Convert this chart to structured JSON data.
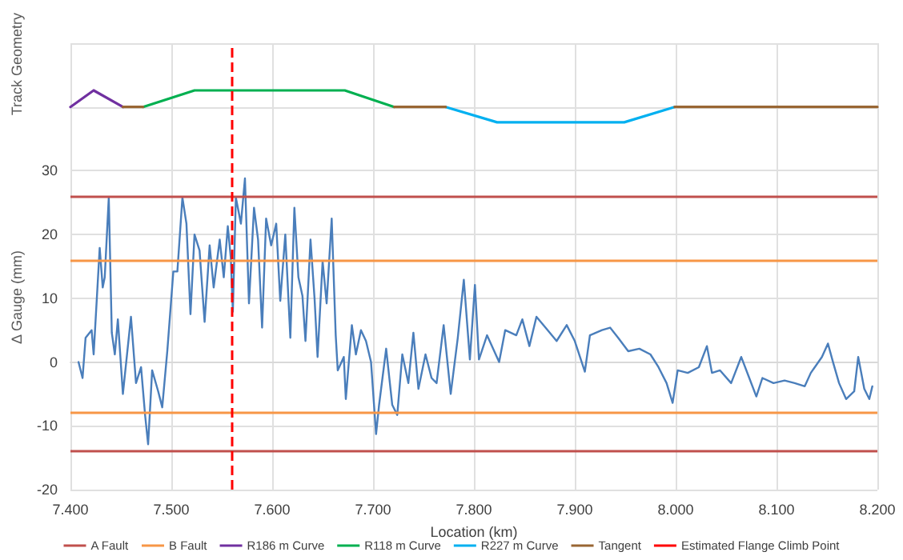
{
  "chart_data": {
    "type": "line",
    "xlabel": "Location (km)",
    "ylabel": "Δ Gauge (mm)",
    "annotations": [
      "Track Geometry"
    ],
    "xlim": [
      7.4,
      8.2
    ],
    "xticks": [
      {
        "value": 7.4,
        "label": "7.400"
      },
      {
        "value": 7.5,
        "label": "7.500"
      },
      {
        "value": 7.6,
        "label": "7.600"
      },
      {
        "value": 7.7,
        "label": "7.700"
      },
      {
        "value": 7.8,
        "label": "7.800"
      },
      {
        "value": 7.9,
        "label": "7.900"
      },
      {
        "value": 8.0,
        "label": "8.000"
      },
      {
        "value": 8.1,
        "label": "8.100"
      },
      {
        "value": 8.2,
        "label": "8.200"
      }
    ],
    "ylim": [
      -20,
      50
    ],
    "yticks": [
      -20,
      -10,
      0,
      10,
      20,
      30,
      {
        "value": 40,
        "label": null
      },
      {
        "value": 50,
        "label": null
      }
    ],
    "grid": true,
    "legend": "bottom",
    "marker": "none",
    "line_style": "solid",
    "series": [
      {
        "color": "#4a7ebb",
        "x": [
          7.408,
          7.412,
          7.415,
          7.421,
          7.423,
          7.429,
          7.432,
          7.434,
          7.438,
          7.441,
          7.444,
          7.447,
          7.452,
          7.46,
          7.465,
          7.47,
          7.474,
          7.477,
          7.481,
          7.487,
          7.491,
          7.496,
          7.502,
          7.506,
          7.511,
          7.515,
          7.519,
          7.523,
          7.528,
          7.533,
          7.538,
          7.542,
          7.548,
          7.552,
          7.556,
          7.559,
          7.561,
          7.564,
          7.569,
          7.573,
          7.577,
          7.582,
          7.586,
          7.59,
          7.594,
          7.599,
          7.604,
          7.608,
          7.613,
          7.618,
          7.622,
          7.626,
          7.63,
          7.633,
          7.638,
          7.642,
          7.645,
          7.65,
          7.654,
          7.659,
          7.663,
          7.665,
          7.671,
          7.673,
          7.679,
          7.683,
          7.688,
          7.693,
          7.698,
          7.703,
          7.706,
          7.713,
          7.719,
          7.724,
          7.729,
          7.735,
          7.74,
          7.745,
          7.752,
          7.758,
          7.763,
          7.77,
          7.777,
          7.784,
          7.79,
          7.796,
          7.801,
          7.805,
          7.813,
          7.825,
          7.831,
          7.842,
          7.848,
          7.855,
          7.862,
          7.871,
          7.882,
          7.892,
          7.9,
          7.91,
          7.915,
          7.927,
          7.935,
          7.943,
          7.953,
          7.964,
          7.975,
          7.983,
          7.991,
          7.997,
          8.002,
          8.012,
          8.023,
          8.031,
          8.036,
          8.044,
          8.055,
          8.065,
          8.073,
          8.08,
          8.086,
          8.097,
          8.108,
          8.118,
          8.128,
          8.134,
          8.145,
          8.151,
          8.156,
          8.162,
          8.169,
          8.177,
          8.181,
          8.187,
          8.192,
          8.195
        ],
        "values": [
          0,
          -2.5,
          3.8,
          5,
          1.2,
          17.9,
          11.7,
          13.3,
          25.8,
          4.6,
          1.2,
          6.7,
          -5,
          7.1,
          -3.3,
          -0.8,
          -8.3,
          -12.9,
          -1.3,
          -4.6,
          -7.1,
          1.7,
          14.2,
          14.2,
          25.8,
          21.7,
          7.5,
          20,
          17.5,
          6.3,
          18.3,
          11.7,
          19.2,
          13.3,
          21.3,
          16.3,
          7.9,
          25.8,
          21.7,
          28.8,
          9.2,
          24.2,
          19.2,
          5.4,
          22.5,
          18.3,
          21.7,
          9.6,
          20,
          3.8,
          24.2,
          13.3,
          10.4,
          3.3,
          19.2,
          10,
          0.8,
          15.8,
          9.2,
          22.5,
          4.2,
          -1.3,
          0.8,
          -5.8,
          5.8,
          1.2,
          5,
          3.3,
          0,
          -11.3,
          -6.7,
          2.1,
          -6.7,
          -8.3,
          1.2,
          -3.3,
          4.6,
          -4.2,
          1.2,
          -2.5,
          -3.3,
          5.8,
          -5,
          3.8,
          12.9,
          0.4,
          12.1,
          0.4,
          4.2,
          0,
          5,
          4.2,
          6.7,
          2.5,
          7.1,
          5.4,
          3.3,
          5.8,
          3.3,
          -1.5,
          4.2,
          5,
          5.4,
          3.8,
          1.7,
          2.1,
          1.2,
          -0.8,
          -3.3,
          -6.4,
          -1.3,
          -1.7,
          -0.8,
          2.5,
          -1.7,
          -1.3,
          -3.3,
          0.8,
          -2.5,
          -5.4,
          -2.5,
          -3.3,
          -2.9,
          -3.3,
          -3.8,
          -1.7,
          0.8,
          2.9,
          0,
          -3.3,
          -5.8,
          -4.6,
          0.8,
          -4.2,
          -5.8,
          -3.8
        ]
      },
      {
        "name": "R186 m Curve",
        "color": "#7030a0",
        "x": [
          7.4,
          7.423,
          7.452
        ],
        "values": [
          40,
          42.6,
          40
        ]
      },
      {
        "name": "R118 m Curve",
        "color": "#00b050",
        "x": [
          7.472,
          7.523,
          7.672,
          7.721
        ],
        "values": [
          40,
          42.6,
          42.6,
          40
        ]
      },
      {
        "name": "R227 m Curve",
        "color": "#00b0f0",
        "x": [
          7.772,
          7.823,
          7.949,
          7.999
        ],
        "values": [
          40,
          37.6,
          37.6,
          40
        ]
      },
      {
        "name": "Tangent",
        "color": "#996633",
        "x": [
          7.452,
          7.472,
          7.6,
          7.721,
          7.772,
          7.9,
          7.999,
          8.2
        ],
        "values": [
          40,
          40,
          null,
          40,
          40,
          null,
          40,
          40
        ]
      }
    ],
    "ref_lines": [
      {
        "axis": "y",
        "value": 26,
        "label": "A Fault",
        "color": "#c0504d"
      },
      {
        "axis": "y",
        "value": -14,
        "color": "#c0504d"
      },
      {
        "axis": "y",
        "value": 16,
        "label": "B Fault",
        "color": "#f79646"
      },
      {
        "axis": "y",
        "value": -8,
        "color": "#f79646"
      },
      {
        "axis": "x",
        "value": 7.558,
        "label": "Estimated Flange Climb Point",
        "color": "#ff0000",
        "line_style": "dashed"
      }
    ]
  }
}
